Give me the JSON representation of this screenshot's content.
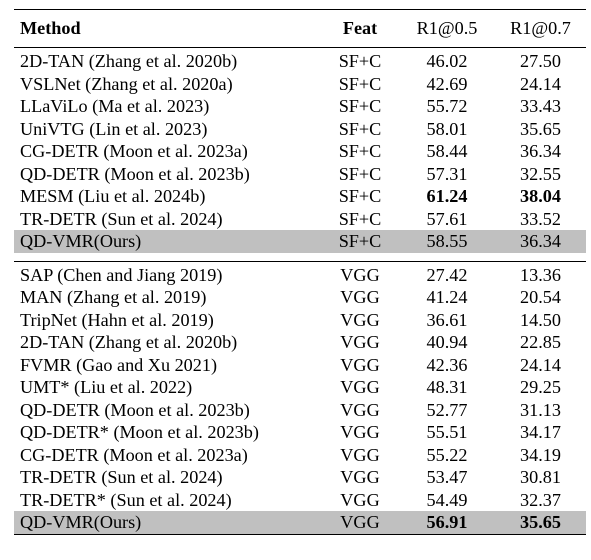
{
  "headers": {
    "method": "Method",
    "feat": "Feat",
    "r05": "R1@0.5",
    "r07": "R1@0.7"
  },
  "sf_section": [
    {
      "method": "2D-TAN (Zhang et al. 2020b)",
      "feat": "SF+C",
      "r05": "46.02",
      "r07": "27.50"
    },
    {
      "method": "VSLNet (Zhang et al. 2020a)",
      "feat": "SF+C",
      "r05": "42.69",
      "r07": "24.14"
    },
    {
      "method": "LLaViLo (Ma et al. 2023)",
      "feat": "SF+C",
      "r05": "55.72",
      "r07": "33.43"
    },
    {
      "method": "UniVTG (Lin et al. 2023)",
      "feat": "SF+C",
      "r05": "58.01",
      "r07": "35.65"
    },
    {
      "method": "CG-DETR (Moon et al. 2023a)",
      "feat": "SF+C",
      "r05": "58.44",
      "r07": "36.34"
    },
    {
      "method": "QD-DETR (Moon et al. 2023b)",
      "feat": "SF+C",
      "r05": "57.31",
      "r07": "32.55"
    },
    {
      "method": "MESM (Liu et al. 2024b)",
      "feat": "SF+C",
      "r05": "61.24",
      "r07": "38.04"
    },
    {
      "method": "TR-DETR (Sun et al. 2024)",
      "feat": "SF+C",
      "r05": "57.61",
      "r07": "33.52"
    },
    {
      "method": "QD-VMR(Ours)",
      "feat": "SF+C",
      "r05": "58.55",
      "r07": "36.34"
    }
  ],
  "vgg_section": [
    {
      "method": "SAP (Chen and Jiang 2019)",
      "feat": "VGG",
      "r05": "27.42",
      "r07": "13.36"
    },
    {
      "method": "MAN (Zhang et al. 2019)",
      "feat": "VGG",
      "r05": "41.24",
      "r07": "20.54"
    },
    {
      "method": "TripNet (Hahn et al. 2019)",
      "feat": "VGG",
      "r05": "36.61",
      "r07": "14.50"
    },
    {
      "method": "2D-TAN (Zhang et al. 2020b)",
      "feat": "VGG",
      "r05": "40.94",
      "r07": "22.85"
    },
    {
      "method": "FVMR (Gao and Xu 2021)",
      "feat": "VGG",
      "r05": "42.36",
      "r07": "24.14"
    },
    {
      "method": "UMT* (Liu et al. 2022)",
      "feat": "VGG",
      "r05": "48.31",
      "r07": "29.25"
    },
    {
      "method": "QD-DETR (Moon et al. 2023b)",
      "feat": "VGG",
      "r05": "52.77",
      "r07": "31.13"
    },
    {
      "method": "QD-DETR* (Moon et al. 2023b)",
      "feat": "VGG",
      "r05": "55.51",
      "r07": "34.17"
    },
    {
      "method": "CG-DETR (Moon et al. 2023a)",
      "feat": "VGG",
      "r05": "55.22",
      "r07": "34.19"
    },
    {
      "method": "TR-DETR (Sun et al. 2024)",
      "feat": "VGG",
      "r05": "53.47",
      "r07": "30.81"
    },
    {
      "method": "TR-DETR* (Sun et al. 2024)",
      "feat": "VGG",
      "r05": "54.49",
      "r07": "32.37"
    },
    {
      "method": "QD-VMR(Ours)",
      "feat": "VGG",
      "r05": "56.91",
      "r07": "35.65"
    }
  ],
  "highlight_color": "#c0c0c0"
}
